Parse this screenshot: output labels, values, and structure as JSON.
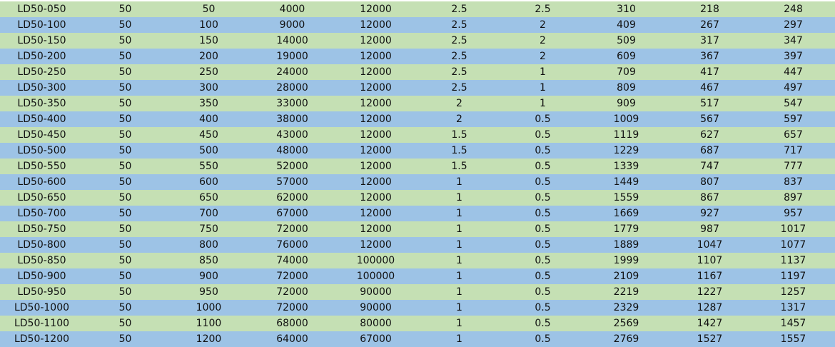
{
  "colors": {
    "row_even": "#C5E0B4",
    "row_odd": "#9DC3E6"
  },
  "rows": [
    [
      "LD50-050",
      "50",
      "50",
      "4000",
      "12000",
      "2.5",
      "2.5",
      "310",
      "218",
      "248"
    ],
    [
      "LD50-100",
      "50",
      "100",
      "9000",
      "12000",
      "2.5",
      "2",
      "409",
      "267",
      "297"
    ],
    [
      "LD50-150",
      "50",
      "150",
      "14000",
      "12000",
      "2.5",
      "2",
      "509",
      "317",
      "347"
    ],
    [
      "LD50-200",
      "50",
      "200",
      "19000",
      "12000",
      "2.5",
      "2",
      "609",
      "367",
      "397"
    ],
    [
      "LD50-250",
      "50",
      "250",
      "24000",
      "12000",
      "2.5",
      "1",
      "709",
      "417",
      "447"
    ],
    [
      "LD50-300",
      "50",
      "300",
      "28000",
      "12000",
      "2.5",
      "1",
      "809",
      "467",
      "497"
    ],
    [
      "LD50-350",
      "50",
      "350",
      "33000",
      "12000",
      "2",
      "1",
      "909",
      "517",
      "547"
    ],
    [
      "LD50-400",
      "50",
      "400",
      "38000",
      "12000",
      "2",
      "0.5",
      "1009",
      "567",
      "597"
    ],
    [
      "LD50-450",
      "50",
      "450",
      "43000",
      "12000",
      "1.5",
      "0.5",
      "1119",
      "627",
      "657"
    ],
    [
      "LD50-500",
      "50",
      "500",
      "48000",
      "12000",
      "1.5",
      "0.5",
      "1229",
      "687",
      "717"
    ],
    [
      "LD50-550",
      "50",
      "550",
      "52000",
      "12000",
      "1.5",
      "0.5",
      "1339",
      "747",
      "777"
    ],
    [
      "LD50-600",
      "50",
      "600",
      "57000",
      "12000",
      "1",
      "0.5",
      "1449",
      "807",
      "837"
    ],
    [
      "LD50-650",
      "50",
      "650",
      "62000",
      "12000",
      "1",
      "0.5",
      "1559",
      "867",
      "897"
    ],
    [
      "LD50-700",
      "50",
      "700",
      "67000",
      "12000",
      "1",
      "0.5",
      "1669",
      "927",
      "957"
    ],
    [
      "LD50-750",
      "50",
      "750",
      "72000",
      "12000",
      "1",
      "0.5",
      "1779",
      "987",
      "1017"
    ],
    [
      "LD50-800",
      "50",
      "800",
      "76000",
      "12000",
      "1",
      "0.5",
      "1889",
      "1047",
      "1077"
    ],
    [
      "LD50-850",
      "50",
      "850",
      "74000",
      "100000",
      "1",
      "0.5",
      "1999",
      "1107",
      "1137"
    ],
    [
      "LD50-900",
      "50",
      "900",
      "72000",
      "100000",
      "1",
      "0.5",
      "2109",
      "1167",
      "1197"
    ],
    [
      "LD50-950",
      "50",
      "950",
      "72000",
      "90000",
      "1",
      "0.5",
      "2219",
      "1227",
      "1257"
    ],
    [
      "LD50-1000",
      "50",
      "1000",
      "72000",
      "90000",
      "1",
      "0.5",
      "2329",
      "1287",
      "1317"
    ],
    [
      "LD50-1100",
      "50",
      "1100",
      "68000",
      "80000",
      "1",
      "0.5",
      "2569",
      "1427",
      "1457"
    ],
    [
      "LD50-1200",
      "50",
      "1200",
      "64000",
      "67000",
      "1",
      "0.5",
      "2769",
      "1527",
      "1557"
    ]
  ]
}
